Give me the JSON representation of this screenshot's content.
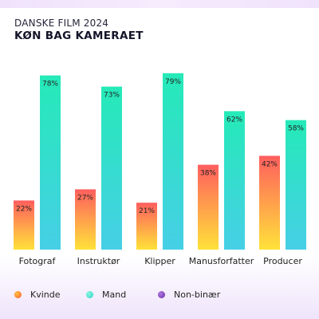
{
  "header": {
    "subtitle": "DANSKE FILM 2024",
    "title": "KØN BAG KAMERAET"
  },
  "colors": {
    "kvinde_top": "#ff5e5e",
    "kvinde_bottom": "#ffe23a",
    "mand_top": "#25eab8",
    "mand_bottom": "#46cfe6",
    "nonbinaer": "#7a35b6"
  },
  "legend": [
    {
      "label": "Kvinde",
      "color": "#ff8a2a"
    },
    {
      "label": "Mand",
      "color": "#2ee0c6"
    },
    {
      "label": "Non-binær",
      "color": "#7a35b6"
    }
  ],
  "chart_data": {
    "type": "bar",
    "categories": [
      "Fotograf",
      "Instruktør",
      "Klipper",
      "Manusforfatter",
      "Producer"
    ],
    "series": [
      {
        "name": "Kvinde",
        "values": [
          22,
          27,
          21,
          38,
          42
        ]
      },
      {
        "name": "Mand",
        "values": [
          78,
          73,
          79,
          62,
          58
        ]
      },
      {
        "name": "Non-binær",
        "values": [
          0,
          0,
          0,
          0,
          0
        ]
      }
    ],
    "value_labels": {
      "Kvinde": [
        "22%",
        "27%",
        "21%",
        "38%",
        "42%"
      ],
      "Mand": [
        "78%",
        "73%",
        "79%",
        "62%",
        "58%"
      ]
    },
    "title": "KØN BAG KAMERAET",
    "subtitle": "DANSKE FILM 2024",
    "xlabel": "",
    "ylabel": "",
    "ylim": [
      0,
      100
    ],
    "grid": false,
    "legend_position": "bottom"
  }
}
